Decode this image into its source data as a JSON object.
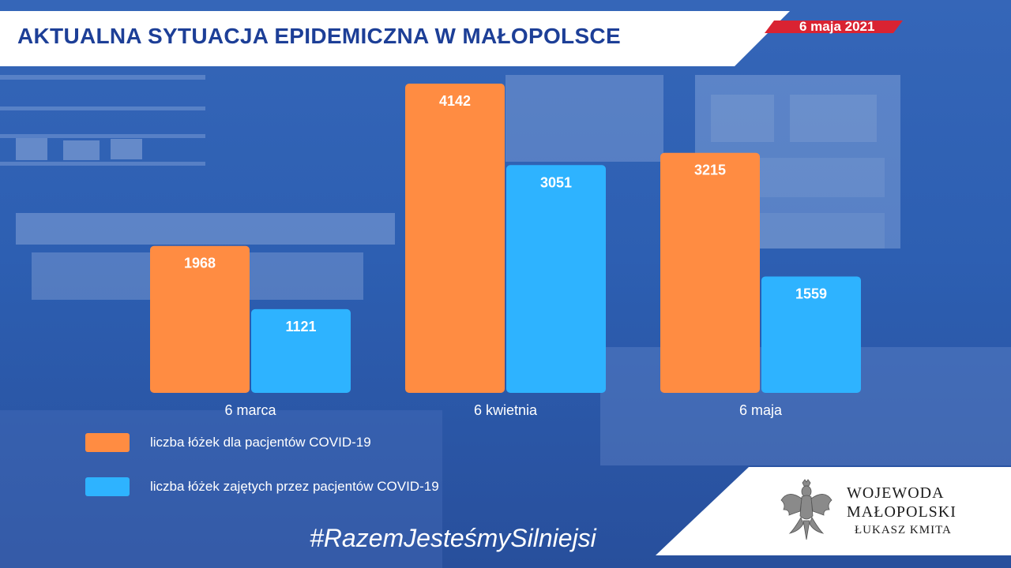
{
  "header": {
    "title": "AKTUALNA SYTUACJA EPIDEMICZNA W MAŁOPOLSCE",
    "date": "6 maja 2021"
  },
  "colors": {
    "beds_total": "#ff8c42",
    "beds_occupied": "#2eb3ff",
    "title_text": "#1d3f97",
    "date_stripe": "#d92332"
  },
  "chart_data": {
    "type": "bar",
    "categories": [
      "6 marca",
      "6 kwietnia",
      "6 maja"
    ],
    "series": [
      {
        "name": "liczba łóżek dla pacjentów COVID-19",
        "values": [
          1968,
          4142,
          3215
        ]
      },
      {
        "name": "liczba łóżek zajętych przez pacjentów COVID-19",
        "values": [
          1121,
          3051,
          1559
        ]
      }
    ],
    "ylim": [
      0,
      4142
    ],
    "grid": false,
    "legend": "bottom-left",
    "data_labels": true
  },
  "legend": [
    {
      "label": "liczba łóżek dla pacjentów COVID-19"
    },
    {
      "label": "liczba łóżek zajętych przez pacjentów COVID-19"
    }
  ],
  "hashtag": "#RazemJesteśmySilniejsi",
  "logo": {
    "line1": "WOJEWODA",
    "line2": "MAŁOPOLSKI",
    "line3": "ŁUKASZ KMITA",
    "emblem": "polish-eagle-icon"
  }
}
